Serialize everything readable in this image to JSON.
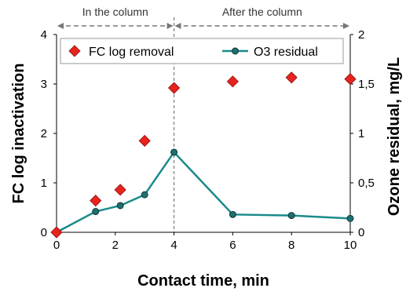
{
  "chart_data": {
    "type": "scatter",
    "xlabel": "Contact time, min",
    "ylabel_left": "FC log inactivation",
    "ylabel_right": "Ozone residual, mg/L",
    "xlim": [
      0,
      10
    ],
    "ylim_left": [
      0,
      4
    ],
    "ylim_right": [
      0,
      2
    ],
    "x_ticks": [
      "0",
      "2",
      "4",
      "6",
      "8",
      "10"
    ],
    "y_left_ticks": [
      "0",
      "1",
      "2",
      "3",
      "4"
    ],
    "y_right_ticks": [
      "0",
      "0,5",
      "1",
      "1,5",
      "2"
    ],
    "grid": false,
    "legend_position": "top",
    "regions": [
      {
        "label": "In the column",
        "from": 0,
        "to": 4
      },
      {
        "label": "After the column",
        "from": 4,
        "to": 10
      }
    ],
    "series": [
      {
        "name": "FC log removal",
        "axis": "left",
        "marker": "diamond",
        "color": "#e8231e",
        "x": [
          0,
          1.33,
          2.17,
          3,
          4,
          6,
          8,
          10
        ],
        "y": [
          0,
          0.64,
          0.86,
          1.85,
          2.92,
          3.05,
          3.13,
          3.1
        ]
      },
      {
        "name": "O3 residual",
        "axis": "right",
        "marker": "circle-line",
        "color": "#1a8a8a",
        "x": [
          0,
          1.33,
          2.17,
          3,
          4,
          6,
          8,
          10
        ],
        "y": [
          0,
          0.21,
          0.27,
          0.38,
          0.81,
          0.18,
          0.17,
          0.14
        ]
      }
    ]
  }
}
